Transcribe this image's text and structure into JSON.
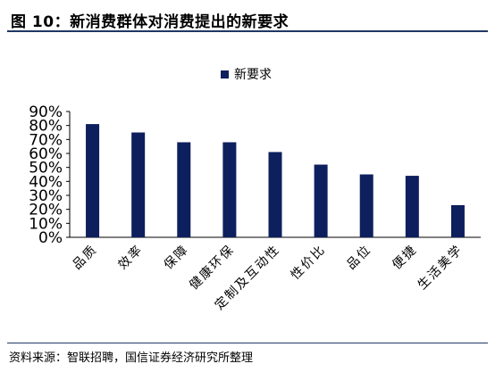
{
  "title": "图 10：新消费群体对消费提出的新要求",
  "source": "资料来源：智联招聘，国信证券经济研究所整理",
  "chart_data": {
    "type": "bar",
    "categories": [
      "品质",
      "效率",
      "保障",
      "健康环保",
      "定制及互动性",
      "性价比",
      "品位",
      "便捷",
      "生活美学"
    ],
    "series": [
      {
        "name": "新要求",
        "values": [
          81,
          75,
          68,
          68,
          61,
          52,
          45,
          44,
          23
        ]
      }
    ],
    "ylim": [
      0,
      90
    ],
    "yticks": [
      "0%",
      "10%",
      "20%",
      "30%",
      "40%",
      "50%",
      "60%",
      "70%",
      "80%",
      "90%"
    ],
    "grid": false,
    "legend": "top",
    "bar_color": "#0d1f5c"
  }
}
